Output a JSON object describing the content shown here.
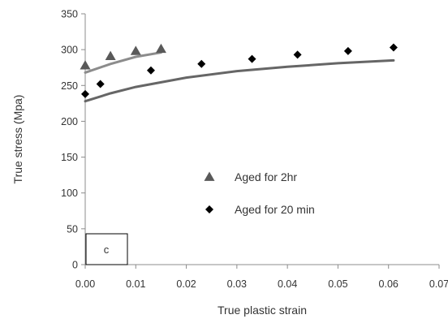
{
  "chart_data": {
    "type": "scatter",
    "xlabel": "True plastic strain",
    "ylabel": "True stress (Mpa)",
    "xlim": [
      0,
      0.07
    ],
    "ylim": [
      0,
      350
    ],
    "x_ticks": [
      "0.00",
      "0.01",
      "0.02",
      "0.03",
      "0.04",
      "0.05",
      "0.06",
      "0.07"
    ],
    "y_ticks": [
      "0",
      "50",
      "100",
      "150",
      "200",
      "250",
      "300",
      "350"
    ],
    "grid": false,
    "legend_position": "center",
    "panel_label": "c",
    "series": [
      {
        "name": "Aged for 2hr",
        "marker": "triangle",
        "color": "#595959",
        "points": [
          [
            0.0,
            278
          ],
          [
            0.005,
            291
          ],
          [
            0.01,
            298
          ],
          [
            0.015,
            301
          ]
        ],
        "fit": [
          [
            0.0,
            268
          ],
          [
            0.005,
            280
          ],
          [
            0.01,
            290
          ],
          [
            0.015,
            296
          ]
        ],
        "fit_color": "#8c8c8c"
      },
      {
        "name": "Aged for 20 min",
        "marker": "diamond",
        "color": "#000000",
        "points": [
          [
            0.0,
            238
          ],
          [
            0.003,
            252
          ],
          [
            0.013,
            271
          ],
          [
            0.023,
            280
          ],
          [
            0.033,
            287
          ],
          [
            0.042,
            293
          ],
          [
            0.052,
            298
          ],
          [
            0.061,
            303
          ]
        ],
        "fit": [
          [
            0.0,
            228
          ],
          [
            0.005,
            239
          ],
          [
            0.01,
            248
          ],
          [
            0.02,
            261
          ],
          [
            0.03,
            270
          ],
          [
            0.04,
            276
          ],
          [
            0.05,
            281
          ],
          [
            0.061,
            285
          ]
        ],
        "fit_color": "#666666"
      }
    ]
  }
}
